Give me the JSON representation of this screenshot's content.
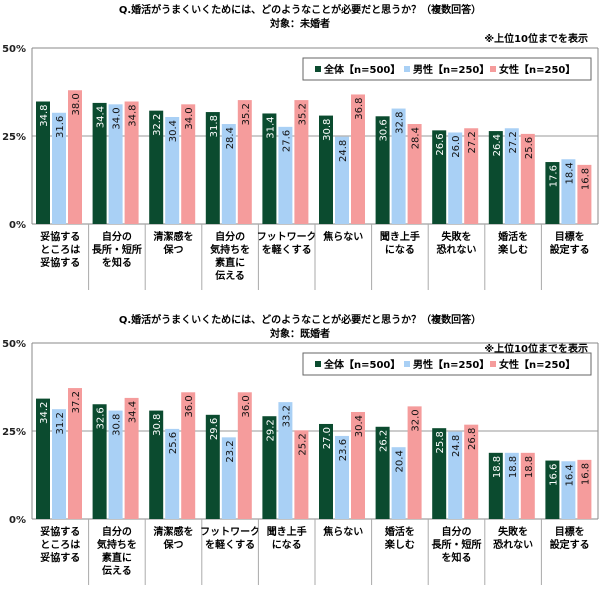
{
  "colors": {
    "all": "#0b4b2f",
    "male": "#a9d0f5",
    "female": "#f59c9c"
  },
  "chart_data": [
    {
      "type": "bar",
      "title": "Q.婚活がうまくいくためには、どのようなことが必要だと思うか？（複数回答）",
      "subtitle": "対象：未婚者",
      "note": "※上位10位までを表示",
      "ylim": [
        0,
        50
      ],
      "yticks": [
        "0%",
        "25%",
        "50%"
      ],
      "grid": true,
      "legend": "top-right",
      "categories": [
        [
          "妥協する",
          "ところは",
          "妥協する"
        ],
        [
          "自分の",
          "長所・短所",
          "を知る"
        ],
        [
          "清潔感を",
          "保つ"
        ],
        [
          "自分の",
          "気持ちを",
          "素直に",
          "伝える"
        ],
        [
          "フットワーク",
          "を軽くする"
        ],
        [
          "焦らない"
        ],
        [
          "聞き上手",
          "になる"
        ],
        [
          "失敗を",
          "恐れない"
        ],
        [
          "婚活を",
          "楽しむ"
        ],
        [
          "目標を",
          "設定する"
        ]
      ],
      "series": [
        {
          "name": "全体【n=500】",
          "values": [
            34.8,
            34.4,
            32.2,
            31.8,
            31.4,
            30.8,
            30.6,
            26.6,
            26.4,
            17.6
          ]
        },
        {
          "name": "男性【n=250】",
          "values": [
            31.6,
            34.0,
            30.4,
            28.4,
            27.6,
            24.8,
            32.8,
            26.0,
            27.2,
            18.4
          ]
        },
        {
          "name": "女性【n=250】",
          "values": [
            38.0,
            34.8,
            34.0,
            35.2,
            35.2,
            36.8,
            28.4,
            27.2,
            25.6,
            16.8
          ]
        }
      ]
    },
    {
      "type": "bar",
      "title": "Q.婚活がうまくいくためには、どのようなことが必要だと思うか？（複数回答）",
      "subtitle": "対象：既婚者",
      "note": "※上位10位までを表示",
      "ylim": [
        0,
        50
      ],
      "yticks": [
        "0%",
        "25%",
        "50%"
      ],
      "grid": true,
      "legend": "top-right",
      "categories": [
        [
          "妥協する",
          "ところは",
          "妥協する"
        ],
        [
          "自分の",
          "気持ちを",
          "素直に",
          "伝える"
        ],
        [
          "清潔感を",
          "保つ"
        ],
        [
          "フットワーク",
          "を軽くする"
        ],
        [
          "聞き上手",
          "になる"
        ],
        [
          "焦らない"
        ],
        [
          "婚活を",
          "楽しむ"
        ],
        [
          "自分の",
          "長所・短所",
          "を知る"
        ],
        [
          "失敗を",
          "恐れない"
        ],
        [
          "目標を",
          "設定する"
        ]
      ],
      "series": [
        {
          "name": "全体【n=500】",
          "values": [
            34.2,
            32.6,
            30.8,
            29.6,
            29.2,
            27.0,
            26.2,
            25.8,
            18.8,
            16.6
          ]
        },
        {
          "name": "男性【n=250】",
          "values": [
            31.2,
            30.8,
            25.6,
            23.2,
            33.2,
            23.6,
            20.4,
            24.8,
            18.8,
            16.4
          ]
        },
        {
          "name": "女性【n=250】",
          "values": [
            37.2,
            34.4,
            36.0,
            36.0,
            25.2,
            30.4,
            32.0,
            26.8,
            18.8,
            16.8
          ]
        }
      ]
    }
  ]
}
